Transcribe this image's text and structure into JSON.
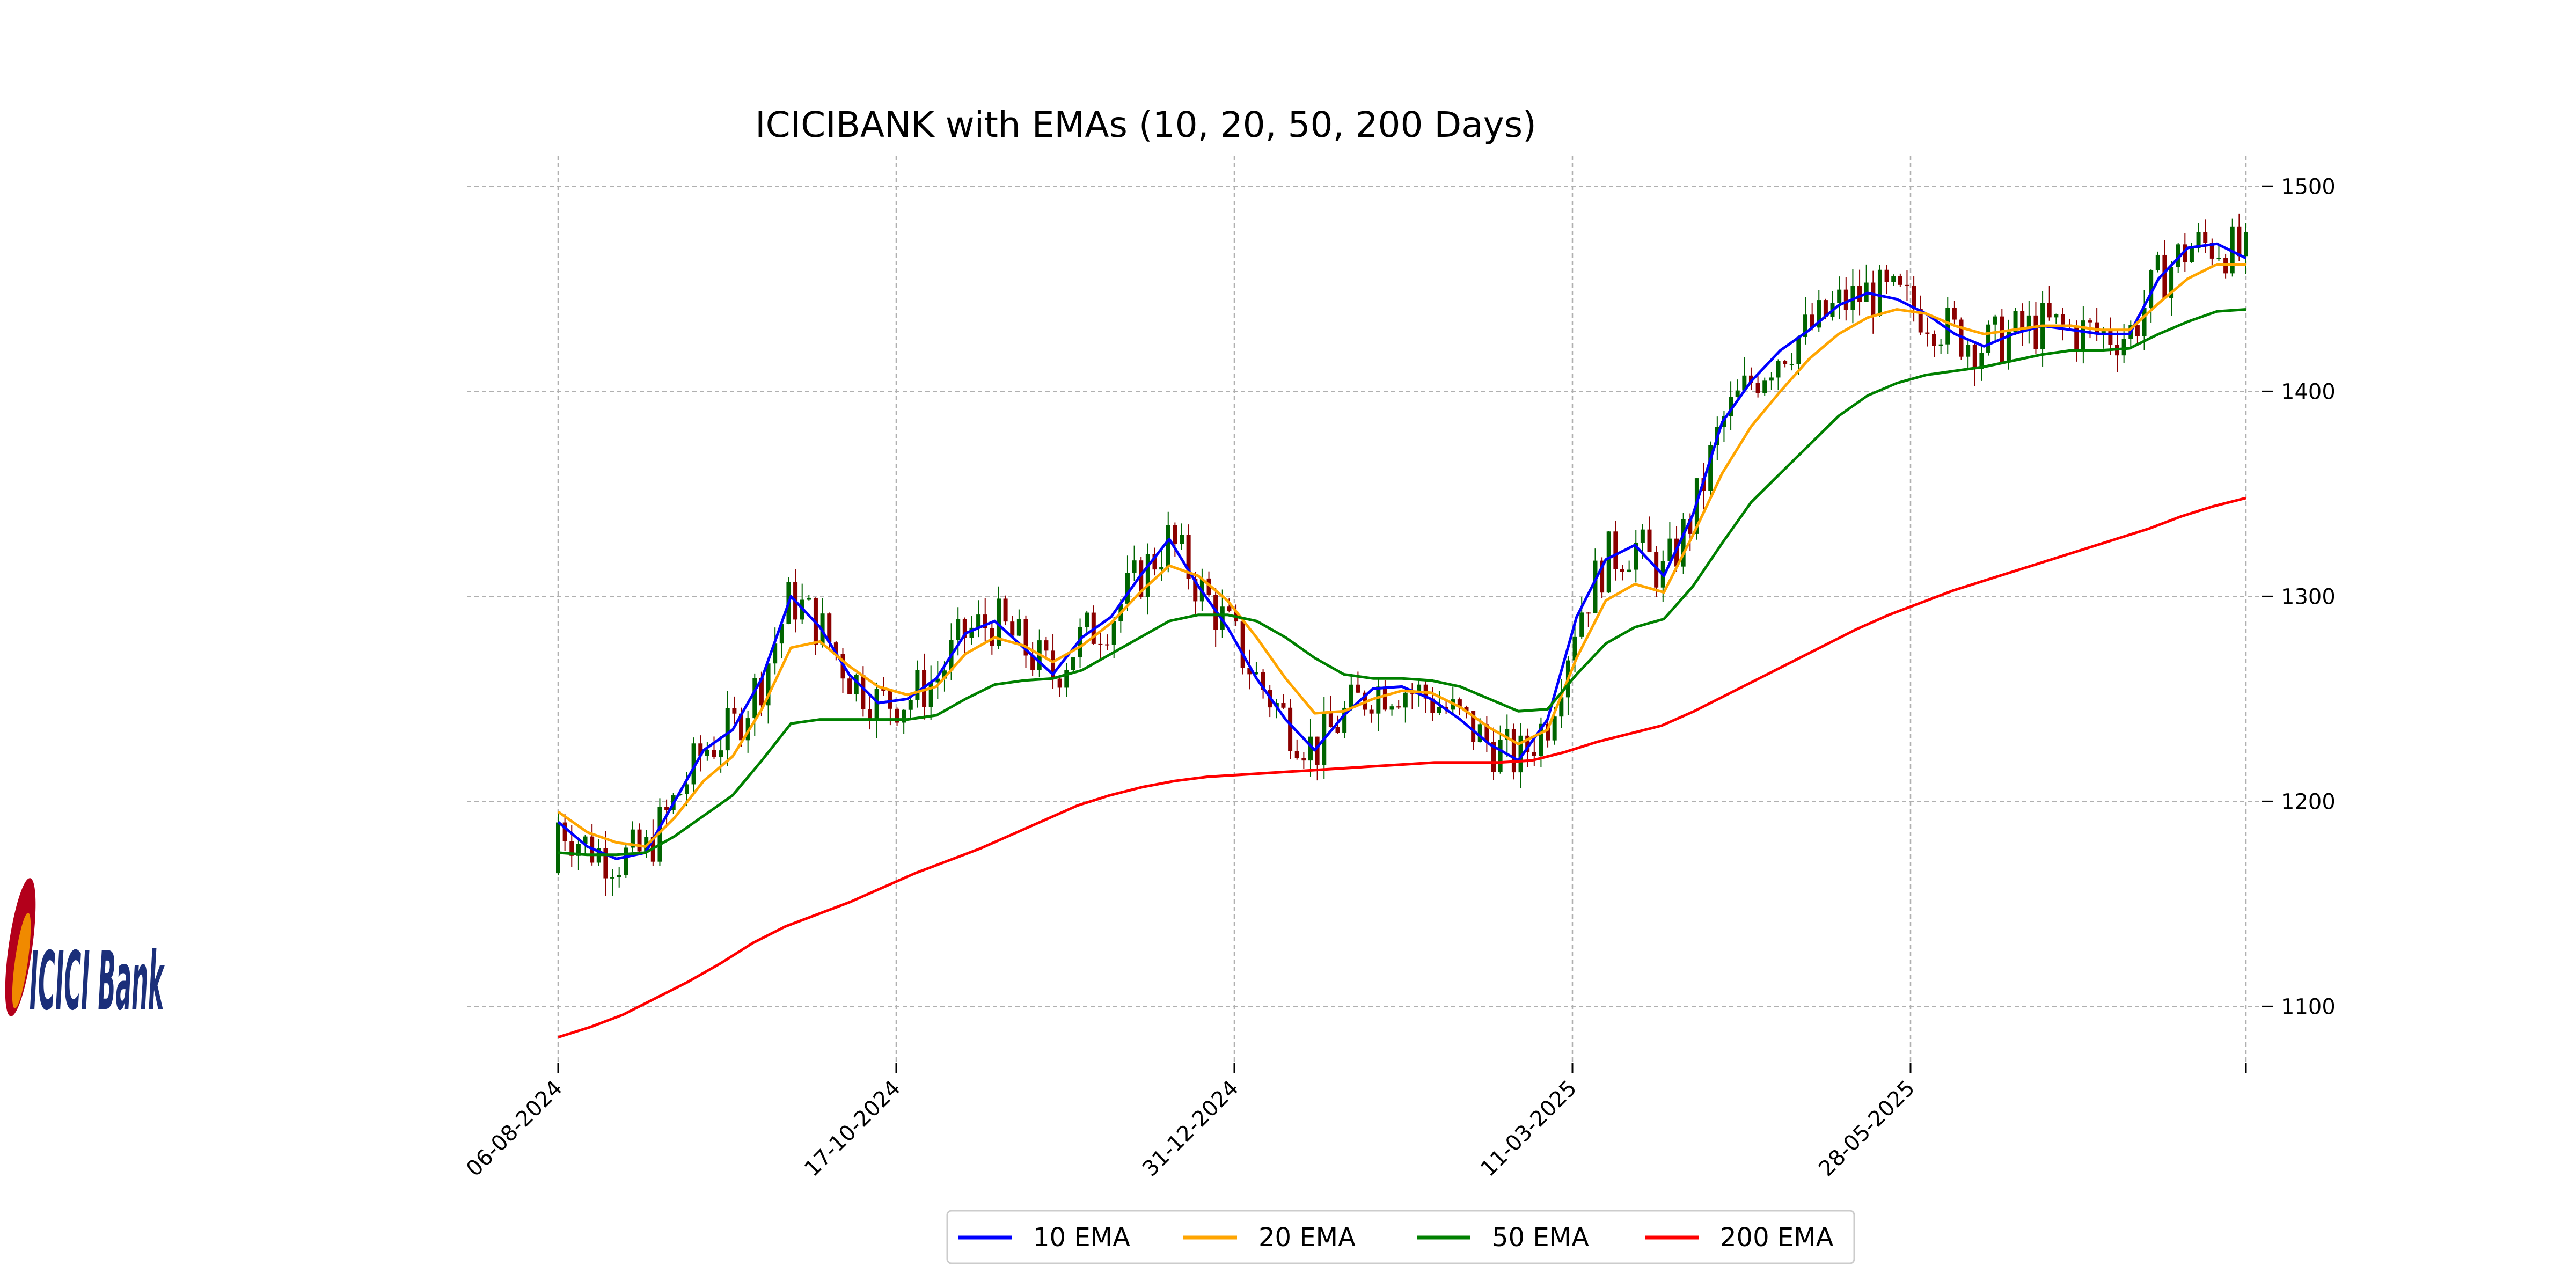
{
  "chart_data": {
    "type": "candlestick-with-lines",
    "title": "ICICIBANK with EMAs (10, 20, 50, 200 Days)",
    "xlabel": "",
    "ylabel": "",
    "ylim": [
      1070,
      1515
    ],
    "yticks": [
      1100,
      1200,
      1300,
      1400,
      1500
    ],
    "y_tick_labels": [
      "1100",
      "1200",
      "1300",
      "1400",
      "1500"
    ],
    "x_tick_labels": [
      "06-08-2024",
      "17-10-2024",
      "31-12-2024",
      "11-03-2025",
      "28-05-2025",
      ""
    ],
    "grid": true,
    "legend": {
      "placement": "bottom-center",
      "entries": [
        "10 EMA",
        "20 EMA",
        "50 EMA",
        "200 EMA"
      ]
    },
    "up_color": "#006400",
    "down_color": "#8b0000",
    "ohlc_sample": "daily candles 06-08-2024 to ~08-2025",
    "series": [
      {
        "name": "10 EMA",
        "color": "#0000ff",
        "values": [
          1190,
          1178,
          1172,
          1175,
          1200,
          1225,
          1235,
          1260,
          1300,
          1285,
          1262,
          1248,
          1250,
          1260,
          1282,
          1288,
          1275,
          1262,
          1280,
          1290,
          1310,
          1328,
          1305,
          1285,
          1260,
          1240,
          1225,
          1242,
          1255,
          1256,
          1250,
          1240,
          1228,
          1220,
          1240,
          1290,
          1318,
          1325,
          1310,
          1340,
          1385,
          1405,
          1420,
          1430,
          1442,
          1448,
          1445,
          1438,
          1428,
          1422,
          1428,
          1432,
          1430,
          1428,
          1428,
          1455,
          1470,
          1472,
          1465
        ]
      },
      {
        "name": "20 EMA",
        "color": "#ffa500",
        "values": [
          1195,
          1185,
          1180,
          1178,
          1192,
          1210,
          1222,
          1245,
          1275,
          1278,
          1266,
          1256,
          1252,
          1256,
          1272,
          1280,
          1276,
          1268,
          1276,
          1287,
          1302,
          1315,
          1310,
          1298,
          1280,
          1260,
          1243,
          1244,
          1250,
          1254,
          1253,
          1246,
          1236,
          1228,
          1235,
          1270,
          1298,
          1306,
          1302,
          1330,
          1360,
          1383,
          1400,
          1416,
          1428,
          1436,
          1440,
          1438,
          1432,
          1428,
          1430,
          1432,
          1432,
          1430,
          1430,
          1443,
          1455,
          1462,
          1462
        ]
      },
      {
        "name": "50 EMA",
        "color": "#008000",
        "values": [
          1175,
          1174,
          1174,
          1175,
          1183,
          1193,
          1203,
          1220,
          1238,
          1240,
          1240,
          1240,
          1240,
          1242,
          1250,
          1257,
          1259,
          1260,
          1264,
          1272,
          1280,
          1288,
          1291,
          1291,
          1288,
          1280,
          1270,
          1262,
          1260,
          1260,
          1259,
          1256,
          1250,
          1244,
          1245,
          1262,
          1277,
          1285,
          1289,
          1305,
          1326,
          1346,
          1360,
          1374,
          1388,
          1398,
          1404,
          1408,
          1410,
          1412,
          1415,
          1418,
          1420,
          1420,
          1421,
          1428,
          1434,
          1439,
          1440
        ]
      },
      {
        "name": "200 EMA",
        "color": "#ff0000",
        "values": [
          1085,
          1090,
          1096,
          1104,
          1112,
          1121,
          1131,
          1139,
          1145,
          1151,
          1158,
          1165,
          1171,
          1177,
          1184,
          1191,
          1198,
          1203,
          1207,
          1210,
          1212,
          1213,
          1214,
          1215,
          1216,
          1217,
          1218,
          1219,
          1219,
          1219,
          1220,
          1224,
          1229,
          1233,
          1237,
          1244,
          1252,
          1260,
          1268,
          1276,
          1284,
          1291,
          1297,
          1303,
          1308,
          1313,
          1318,
          1323,
          1328,
          1333,
          1339,
          1344,
          1348
        ]
      }
    ]
  }
}
